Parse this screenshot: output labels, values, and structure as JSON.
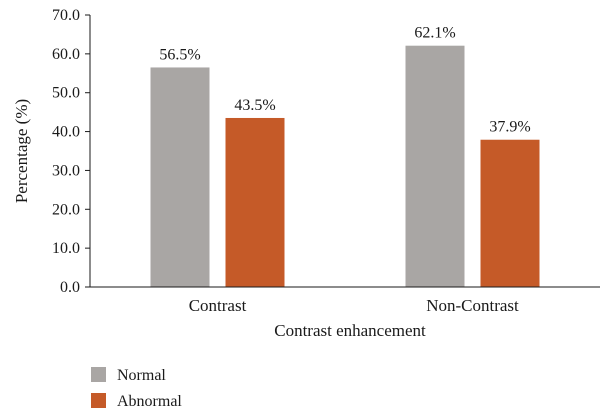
{
  "chart_data": {
    "type": "bar",
    "title": "",
    "xlabel": "Contrast enhancement",
    "ylabel": "Percentage (%)",
    "ylim": [
      0,
      70
    ],
    "yticks": [
      "0.0",
      "10.0",
      "20.0",
      "30.0",
      "40.0",
      "50.0",
      "60.0",
      "70.0"
    ],
    "categories": [
      "Contrast",
      "Non-Contrast"
    ],
    "series": [
      {
        "name": "Normal",
        "values": [
          56.5,
          62.1
        ],
        "labels": [
          "56.5%",
          "62.1%"
        ],
        "color": "#a9a6a4"
      },
      {
        "name": "Abnormal",
        "values": [
          43.5,
          37.9
        ],
        "labels": [
          "43.5%",
          "37.9%"
        ],
        "color": "#c55a28"
      }
    ],
    "grid": false,
    "legend_position": "bottom-left"
  }
}
